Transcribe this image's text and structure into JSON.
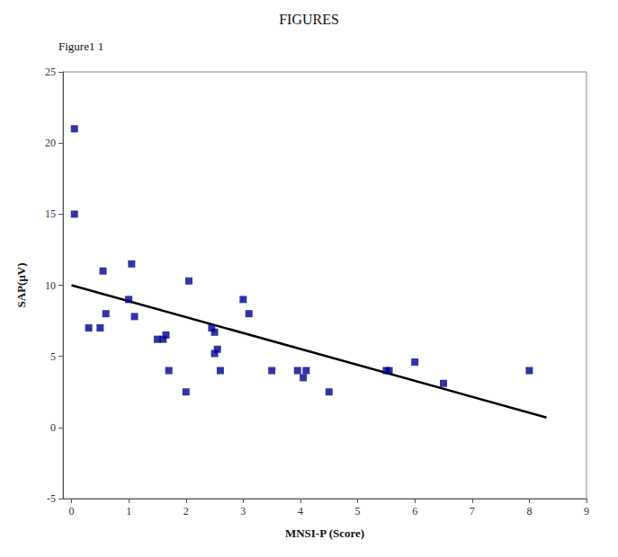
{
  "chart_data": {
    "type": "scatter",
    "title": "FIGURES",
    "subtitle": "Figure1 1",
    "xlabel": "MNSI-P (Score)",
    "ylabel": "SAP(μV)",
    "xlim": [
      -0.15,
      9
    ],
    "ylim": [
      -5,
      25
    ],
    "xticks": [
      0,
      1,
      2,
      3,
      4,
      5,
      6,
      7,
      8,
      9
    ],
    "yticks": [
      -5,
      0,
      5,
      10,
      15,
      20,
      25
    ],
    "grid": false,
    "series": [
      {
        "type": "scatter",
        "color": "#00008B",
        "marker": "square",
        "x": [
          0.05,
          0.05,
          0.3,
          0.5,
          0.55,
          0.6,
          1.0,
          1.05,
          1.1,
          1.5,
          1.6,
          1.65,
          1.7,
          2.0,
          2.05,
          2.45,
          2.5,
          2.5,
          2.55,
          2.6,
          3.0,
          3.1,
          3.5,
          3.95,
          4.05,
          4.1,
          4.5,
          5.5,
          5.55,
          6.0,
          6.5,
          8.0
        ],
        "values": [
          21.0,
          15.0,
          7.0,
          7.0,
          11.0,
          8.0,
          9.0,
          11.5,
          7.8,
          6.2,
          6.2,
          6.5,
          4.0,
          2.5,
          10.3,
          7.0,
          6.7,
          5.2,
          5.5,
          4.0,
          9.0,
          8.0,
          4.0,
          4.0,
          3.5,
          4.0,
          2.5,
          4.0,
          4.0,
          4.6,
          3.1,
          4.0
        ]
      },
      {
        "type": "line",
        "color": "#000000",
        "x": [
          0.0,
          8.3
        ],
        "values": [
          10.0,
          0.7
        ]
      }
    ]
  }
}
